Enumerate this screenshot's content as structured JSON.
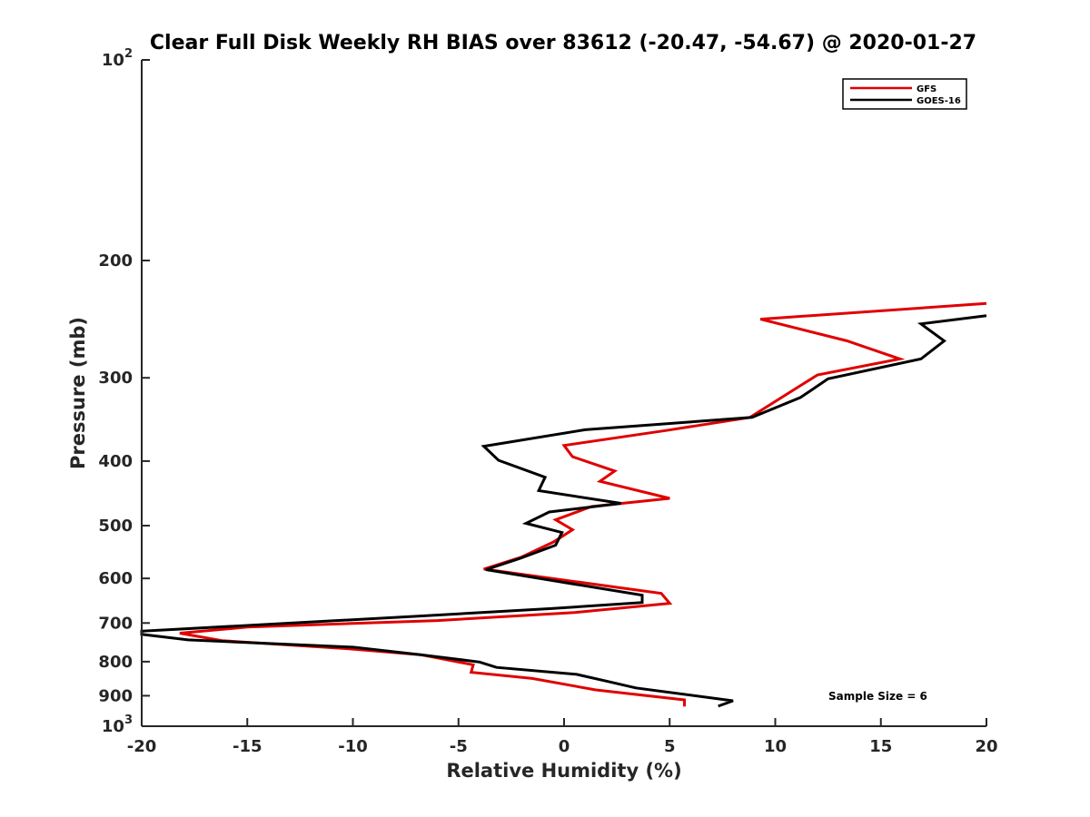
{
  "chart_data": {
    "type": "line",
    "title": "Clear Full Disk Weekly RH BIAS over 83612 (-20.47, -54.67) @ 2020-01-27",
    "xlabel": "Relative Humidity (%)",
    "ylabel": "Pressure (mb)",
    "xlim": [
      -20,
      20
    ],
    "ylim": [
      100,
      1000
    ],
    "y_scale": "log",
    "y_reversed": true,
    "grid": false,
    "x_ticks": [
      -20,
      -15,
      -10,
      -5,
      0,
      5,
      10,
      15,
      20
    ],
    "x_tick_labels": [
      "-20",
      "-15",
      "-10",
      "-5",
      "0",
      "5",
      "10",
      "15",
      "20"
    ],
    "y_ticks": [
      100,
      200,
      300,
      400,
      500,
      600,
      700,
      800,
      900,
      1000
    ],
    "y_tick_labels": [
      {
        "base": "10",
        "exp": "2"
      },
      {
        "base": "200",
        "exp": ""
      },
      {
        "base": "300",
        "exp": ""
      },
      {
        "base": "400",
        "exp": ""
      },
      {
        "base": "500",
        "exp": ""
      },
      {
        "base": "600",
        "exp": ""
      },
      {
        "base": "700",
        "exp": ""
      },
      {
        "base": "800",
        "exp": ""
      },
      {
        "base": "900",
        "exp": ""
      },
      {
        "base": "10",
        "exp": "3"
      }
    ],
    "legend_position": "top-right",
    "annotation": "Sample Size = 6",
    "series": [
      {
        "name": "GFS",
        "color": "#e00000",
        "points": [
          [
            20.0,
            232
          ],
          [
            9.3,
            245
          ],
          [
            13.4,
            264
          ],
          [
            15.9,
            281
          ],
          [
            12.0,
            297
          ],
          [
            8.8,
            344
          ],
          [
            4.8,
            360
          ],
          [
            0.0,
            379
          ],
          [
            0.4,
            394
          ],
          [
            2.4,
            414
          ],
          [
            1.7,
            429
          ],
          [
            5.0,
            455
          ],
          [
            1.3,
            468
          ],
          [
            -0.4,
            490
          ],
          [
            0.4,
            507
          ],
          [
            -0.5,
            529
          ],
          [
            -2.0,
            557
          ],
          [
            -3.8,
            581
          ],
          [
            4.6,
            632
          ],
          [
            5.0,
            654
          ],
          [
            0.5,
            675
          ],
          [
            -6.0,
            694
          ],
          [
            -15.0,
            710
          ],
          [
            -18.2,
            725
          ],
          [
            -16.2,
            744
          ],
          [
            -10.5,
            764
          ],
          [
            -6.8,
            781
          ],
          [
            -4.3,
            809
          ],
          [
            -4.4,
            830
          ],
          [
            -1.5,
            848
          ],
          [
            1.5,
            882
          ],
          [
            5.7,
            913
          ],
          [
            5.7,
            934
          ]
        ]
      },
      {
        "name": "GOES-16",
        "color": "#000000",
        "points": [
          [
            20.0,
            242
          ],
          [
            16.9,
            249
          ],
          [
            18.0,
            264
          ],
          [
            16.9,
            281
          ],
          [
            12.5,
            301
          ],
          [
            11.2,
            321
          ],
          [
            8.9,
            344
          ],
          [
            1.0,
            359
          ],
          [
            -3.8,
            380
          ],
          [
            -3.1,
            399
          ],
          [
            -0.9,
            423
          ],
          [
            -1.2,
            443
          ],
          [
            2.7,
            463
          ],
          [
            -0.7,
            477
          ],
          [
            -1.8,
            496
          ],
          [
            -0.1,
            512
          ],
          [
            -0.4,
            535
          ],
          [
            -2.1,
            560
          ],
          [
            -3.7,
            582
          ],
          [
            3.7,
            636
          ],
          [
            3.7,
            652
          ],
          [
            -0.6,
            666
          ],
          [
            -7.0,
            684
          ],
          [
            -15.0,
            706
          ],
          [
            -20.0,
            720
          ],
          [
            -20.0,
            728
          ],
          [
            -17.8,
            742
          ],
          [
            -10.0,
            761
          ],
          [
            -6.8,
            781
          ],
          [
            -4.0,
            801
          ],
          [
            -3.2,
            816
          ],
          [
            0.6,
            836
          ],
          [
            2.1,
            857
          ],
          [
            3.4,
            876
          ],
          [
            8.0,
            916
          ],
          [
            7.3,
            933
          ]
        ]
      }
    ]
  }
}
